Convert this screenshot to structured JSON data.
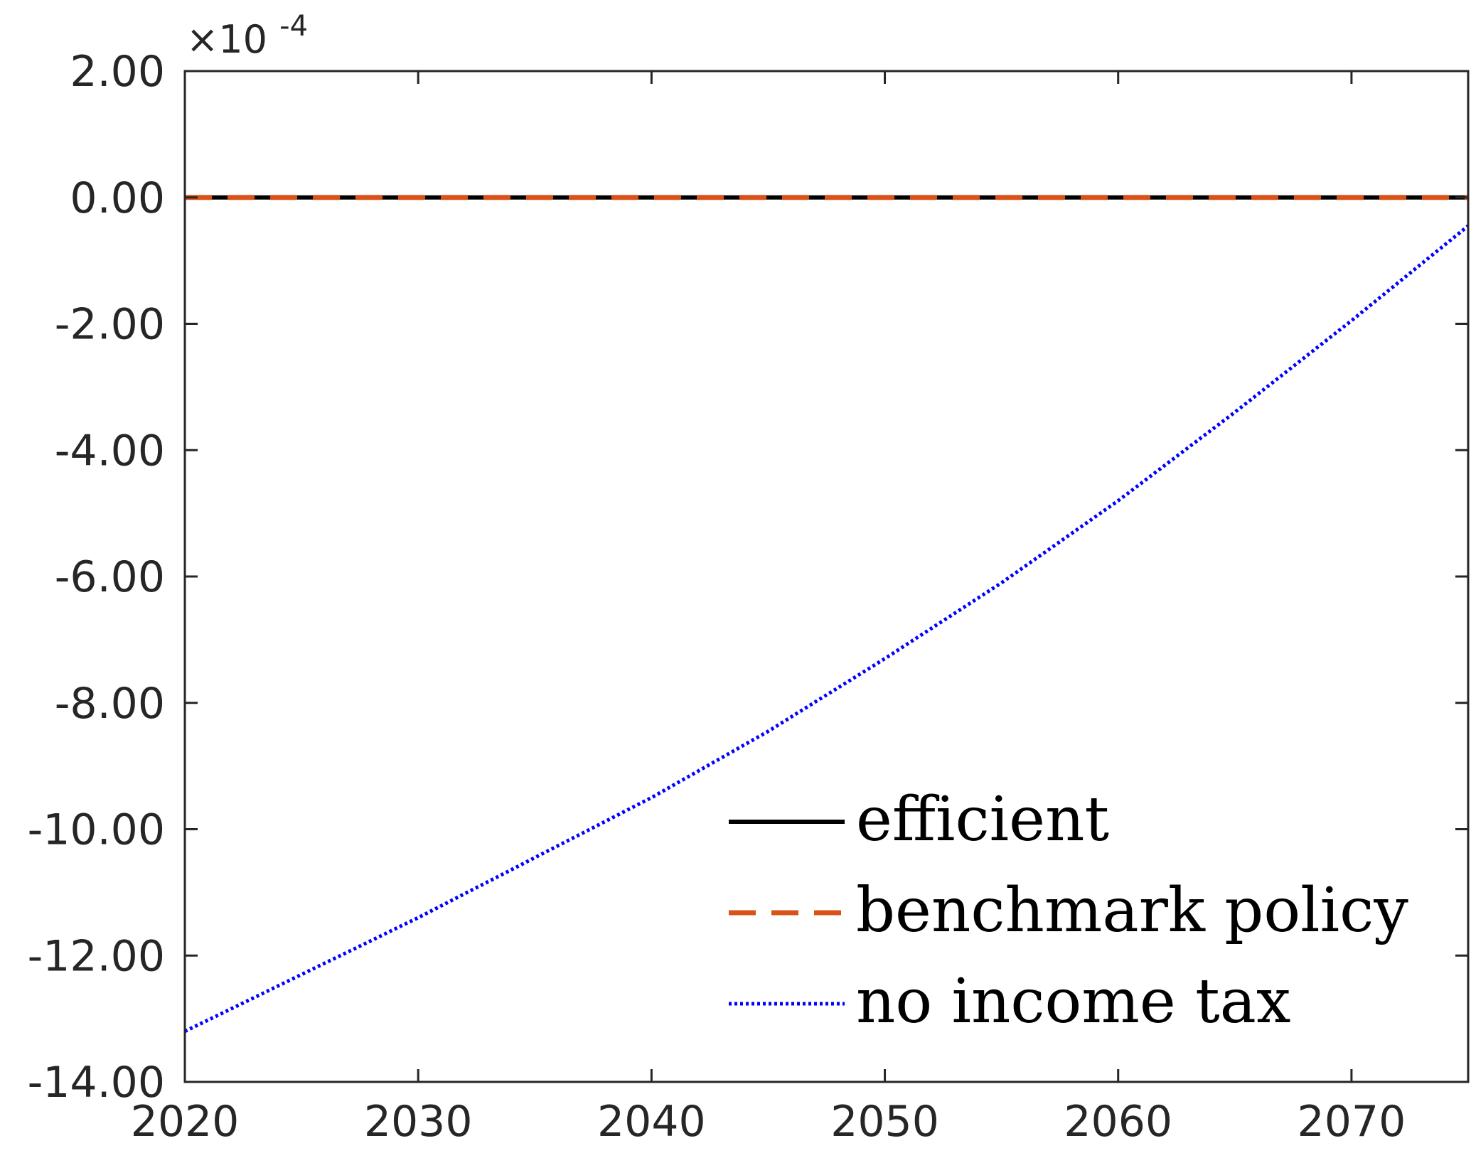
{
  "chart_data": {
    "type": "line",
    "xlim": [
      2020,
      2075
    ],
    "ylim": [
      -14,
      2
    ],
    "y_multiplier": {
      "times": "×10",
      "exponent": "-4"
    },
    "xticks": [
      2020,
      2030,
      2040,
      2050,
      2060,
      2070
    ],
    "xtick_labels": [
      "2020",
      "2030",
      "2040",
      "2050",
      "2060",
      "2070"
    ],
    "yticks": [
      2,
      0,
      -2,
      -4,
      -6,
      -8,
      -10,
      -12,
      -14
    ],
    "ytick_labels": [
      "2.00",
      "0.00",
      "-2.00",
      "-4.00",
      "-6.00",
      "-8.00",
      "-10.00",
      "-12.00",
      "-14.00"
    ],
    "grid": false,
    "legend_position": "bottom-right",
    "series": [
      {
        "name": "efficient",
        "color": "#000000",
        "style": "solid",
        "x": [
          2020,
          2030,
          2040,
          2050,
          2060,
          2070,
          2075
        ],
        "y": [
          0,
          0,
          0,
          0,
          0,
          0,
          0
        ]
      },
      {
        "name": "benchmark policy",
        "color": "#D95319",
        "style": "dashed",
        "x": [
          2020,
          2030,
          2040,
          2050,
          2060,
          2070,
          2075
        ],
        "y": [
          0,
          0,
          0,
          0,
          0,
          0,
          0
        ]
      },
      {
        "name": "no income tax",
        "color": "#0000FF",
        "style": "dotted",
        "x": [
          2020,
          2025,
          2030,
          2035,
          2040,
          2045,
          2050,
          2055,
          2060,
          2065,
          2070,
          2075
        ],
        "y": [
          -13.2,
          -12.3,
          -11.4,
          -10.45,
          -9.5,
          -8.45,
          -7.3,
          -6.1,
          -4.8,
          -3.4,
          -1.95,
          -0.45
        ]
      }
    ]
  }
}
